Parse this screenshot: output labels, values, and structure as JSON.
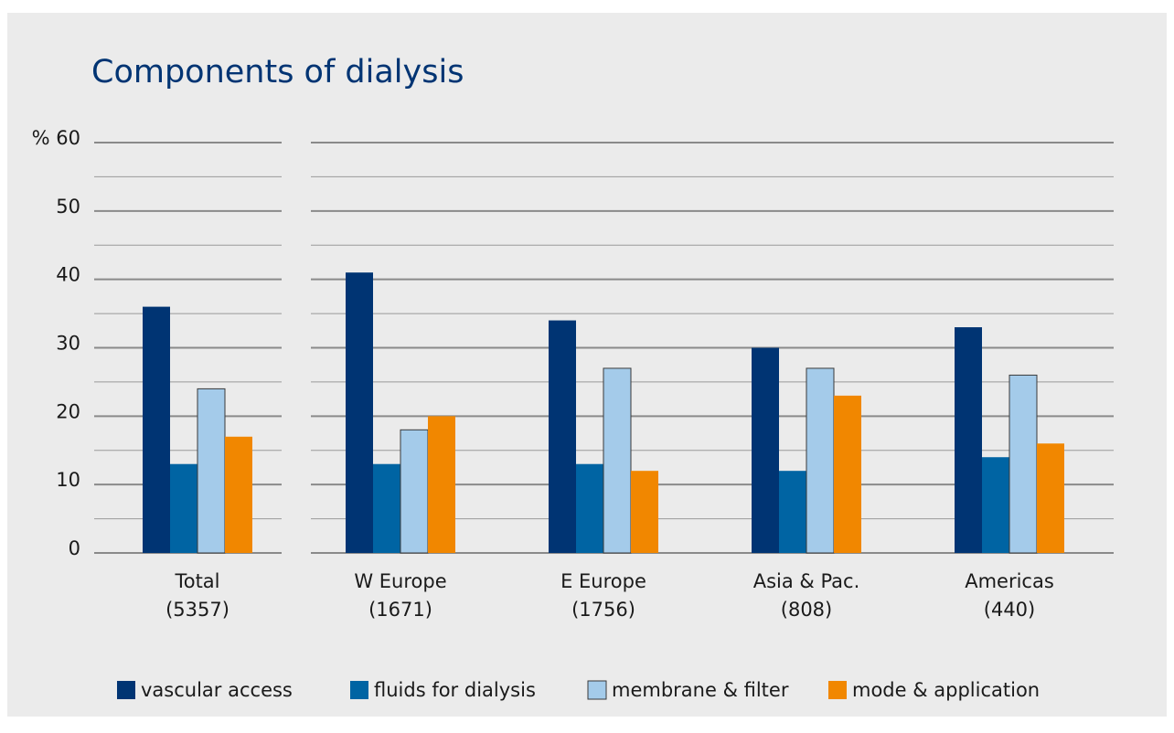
{
  "chart_data": {
    "type": "bar",
    "title": "Components of dialysis",
    "categories": [
      "Total",
      "W Europe",
      "E Europe",
      "Asia & Pac.",
      "Americas"
    ],
    "sample_sizes": [
      "(5357)",
      "(1671)",
      "(1756)",
      "(808)",
      "(440)"
    ],
    "series": [
      {
        "name": "vascular access",
        "color": "#003473",
        "values": [
          36,
          41,
          34,
          30,
          33
        ]
      },
      {
        "name": "fluids for dialysis",
        "color": "#0064a3",
        "values": [
          13,
          13,
          13,
          12,
          14
        ]
      },
      {
        "name": "membrane & filter",
        "color": "#a4cbea",
        "values": [
          24,
          18,
          27,
          27,
          26
        ]
      },
      {
        "name": "mode & application",
        "color": "#f18700",
        "values": [
          17,
          20,
          12,
          23,
          16
        ]
      }
    ],
    "ylim": [
      0,
      60
    ],
    "yticks": [
      0,
      10,
      20,
      30,
      40,
      50,
      {
        "value": 60,
        "label": "% 60"
      }
    ],
    "minor_yticks": [
      5,
      15,
      25,
      35,
      45,
      55
    ],
    "grid": true,
    "legend": "bottom"
  }
}
